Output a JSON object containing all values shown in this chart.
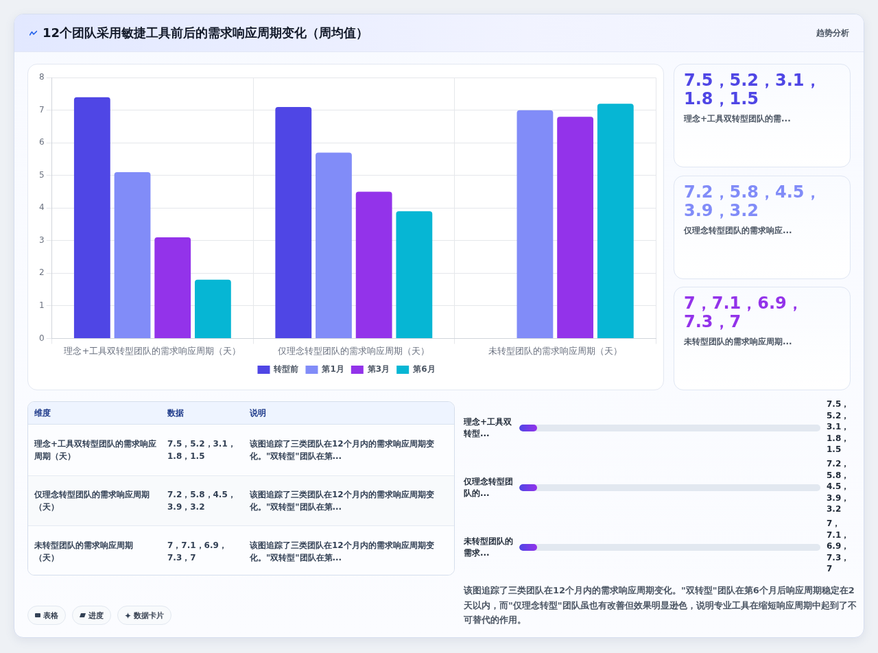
{
  "chart_data": [
    {
      "type": "bar",
      "title": "12个团队采用敏捷工具前后的需求响应周期变化（周均值）",
      "categories": [
        "理念+工具双转型团队的需求响应周期（天）",
        "仅理念转型团队的需求响应周期（天）",
        "未转型团队的需求响应周期（天）"
      ],
      "series": [
        {
          "name": "转型前",
          "color": "#4f46e5",
          "values": [
            7.4,
            7.1,
            null
          ]
        },
        {
          "name": "第1月",
          "color": "#818cf8",
          "values": [
            5.1,
            5.7,
            7.0
          ]
        },
        {
          "name": "第3月",
          "color": "#9333ea",
          "values": [
            3.1,
            4.5,
            6.8
          ]
        },
        {
          "name": "第6月",
          "color": "#06b6d4",
          "values": [
            1.8,
            3.9,
            7.2
          ]
        }
      ],
      "ylim": [
        0,
        8
      ],
      "yticks": [
        0,
        1,
        2,
        3,
        4,
        5,
        6,
        7,
        8
      ],
      "grid": true,
      "legend": "bottom",
      "annotations": [
        "趋势分析",
        "该图追踪了三类团队在12个月内的需求响应周期变化。\"双转型\"团队在第6个月后响应周期稳定在2天以内，而\"仅理念转型\"团队虽也有改善但效果明显逊色，说明专业工具在缩短响应周期中起到了不可替代的作用。",
        "表格",
        "进度",
        "数据卡片"
      ]
    },
    {
      "type": "other",
      "annotations": [
        "7.5，5.2，3.1，1.8，1.5",
        "理念+工具双转型团队的需...",
        "7.2，5.8，4.5，3.9，3.2",
        "仅理念转型团队的需求响应...",
        "7，7.1，6.9，7.3，7",
        "未转型团队的需求响应周期..."
      ]
    },
    {
      "type": "other",
      "annotations": [
        "维度",
        "数据",
        "说明",
        "理念+工具双转型团队的需求响应周期（天）",
        "7.5，5.2，3.1，1.8，1.5",
        "该图追踪了三类团队在12个月内的需求响应周期变化。\"双转型\"团队在第...",
        "仅理念转型团队的需求响应周期（天）",
        "7.2，5.8，4.5，3.9，3.2",
        "该图追踪了三类团队在12个月内的需求响应周期变化。\"双转型\"团队在第...",
        "未转型团队的需求响应周期（天）",
        "7，7.1，6.9，7.3，7",
        "该图追踪了三类团队在12个月内的需求响应周期变化。\"双转型\"团队在第..."
      ]
    },
    {
      "type": "other",
      "annotations": [
        "理念+工具双转型...",
        "7.5，5.2，3.1，1.8，1.5",
        "仅理念转型团队的...",
        "7.2，5.8，4.5，3.9，3.2",
        "未转型团队的需求...",
        "7，7.1，6.9，7.3，7"
      ]
    }
  ]
}
